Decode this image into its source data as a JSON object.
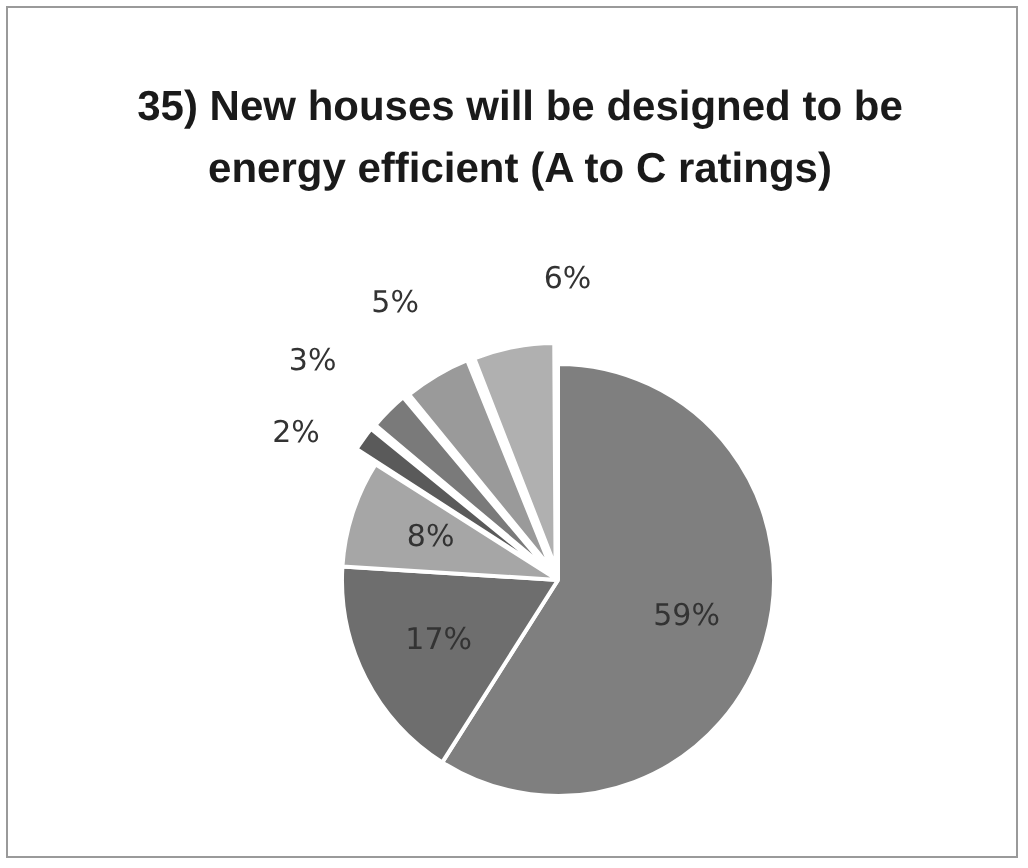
{
  "chart_data": {
    "type": "pie",
    "title": "35) New houses will be designed to be energy efficient (A to C ratings)",
    "categories": [
      null,
      null,
      null,
      null,
      null,
      null,
      null
    ],
    "values": [
      59,
      17,
      8,
      2,
      3,
      5,
      6
    ],
    "colors": [
      "#7f7f7f",
      "#6e6e6e",
      "#a6a6a6",
      "#5a5a5a",
      "#7a7a7a",
      "#9a9a9a",
      "#b0b0b0"
    ],
    "value_labels": [
      "59%",
      "17%",
      "8%",
      "2%",
      "3%",
      "5%",
      "6%"
    ]
  }
}
